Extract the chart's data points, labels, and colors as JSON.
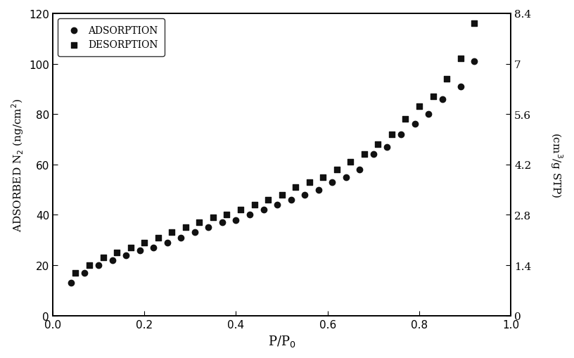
{
  "adsorption_x": [
    0.04,
    0.07,
    0.1,
    0.13,
    0.16,
    0.19,
    0.22,
    0.25,
    0.28,
    0.31,
    0.34,
    0.37,
    0.4,
    0.43,
    0.46,
    0.49,
    0.52,
    0.55,
    0.58,
    0.61,
    0.64,
    0.67,
    0.7,
    0.73,
    0.76,
    0.79,
    0.82,
    0.85,
    0.89,
    0.92
  ],
  "adsorption_y": [
    13,
    17,
    20,
    22,
    24,
    26,
    27,
    29,
    31,
    33,
    35,
    37,
    38,
    40,
    42,
    44,
    46,
    48,
    50,
    53,
    55,
    58,
    64,
    67,
    72,
    76,
    80,
    86,
    91,
    101
  ],
  "desorption_x": [
    0.05,
    0.08,
    0.11,
    0.14,
    0.17,
    0.2,
    0.23,
    0.26,
    0.29,
    0.32,
    0.35,
    0.38,
    0.41,
    0.44,
    0.47,
    0.5,
    0.53,
    0.56,
    0.59,
    0.62,
    0.65,
    0.68,
    0.71,
    0.74,
    0.77,
    0.8,
    0.83,
    0.86,
    0.89,
    0.92
  ],
  "desorption_y": [
    17,
    20,
    23,
    25,
    27,
    29,
    31,
    33,
    35,
    37,
    39,
    40,
    42,
    44,
    46,
    48,
    51,
    53,
    55,
    58,
    61,
    64,
    68,
    72,
    78,
    83,
    87,
    94,
    102,
    116
  ],
  "xlabel": "P/P$_0$",
  "ylabel_left": "ADSORBED N$_2$ (ng/cm$^2$)",
  "ylabel_right": "(cm$^3$/g STP)",
  "legend_adsorption": "ADSORPTION",
  "legend_desorption": "DESORPTION",
  "xlim": [
    0,
    1.0
  ],
  "ylim_left": [
    0,
    120
  ],
  "ylim_right": [
    0,
    8.4
  ],
  "yticks_left": [
    0,
    20,
    40,
    60,
    80,
    100,
    120
  ],
  "yticks_right": [
    0,
    1.4,
    2.8,
    4.2,
    5.6,
    7.0,
    8.4
  ],
  "xticks": [
    0,
    0.2,
    0.4,
    0.6,
    0.8,
    1.0
  ],
  "background_color": "#ffffff",
  "plot_bg_color": "#ffffff",
  "marker_adsorption": "o",
  "marker_desorption": "s",
  "marker_size": 6,
  "marker_color": "#111111"
}
